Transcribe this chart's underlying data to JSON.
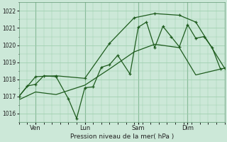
{
  "xlabel": "Pression niveau de la mer( hPa )",
  "bg_color": "#cce8d8",
  "grid_color": "#99ccaa",
  "line_color": "#1e5c1e",
  "ylim": [
    1015.5,
    1022.5
  ],
  "yticks": [
    1016,
    1017,
    1018,
    1019,
    1020,
    1021,
    1022
  ],
  "xlim": [
    0,
    100
  ],
  "day_ticks": [
    8,
    32,
    58,
    82
  ],
  "day_labels": [
    "Ven",
    "Lun",
    "Sam",
    "Dim"
  ],
  "vline_positions": [
    8,
    32,
    58,
    82
  ],
  "line1_x": [
    0,
    4,
    8,
    12,
    18,
    24,
    28,
    32,
    36,
    40,
    44,
    48,
    54,
    58,
    62,
    66,
    70,
    74,
    78,
    82,
    86,
    90,
    94,
    98
  ],
  "line1_y": [
    1017.0,
    1017.6,
    1017.7,
    1018.2,
    1018.15,
    1016.85,
    1015.7,
    1017.5,
    1017.55,
    1018.7,
    1018.85,
    1019.4,
    1018.3,
    1021.05,
    1021.35,
    1019.85,
    1021.1,
    1020.5,
    1019.9,
    1021.2,
    1020.4,
    1020.5,
    1019.85,
    1018.6
  ],
  "line2_x": [
    0,
    8,
    18,
    32,
    44,
    56,
    66,
    78,
    86,
    100
  ],
  "line2_y": [
    1017.0,
    1018.15,
    1018.2,
    1018.05,
    1020.1,
    1021.6,
    1021.85,
    1021.75,
    1021.35,
    1018.65
  ],
  "line3_x": [
    0,
    8,
    18,
    32,
    44,
    56,
    66,
    78,
    86,
    100
  ],
  "line3_y": [
    1016.8,
    1017.25,
    1017.1,
    1017.65,
    1018.6,
    1019.6,
    1020.05,
    1019.85,
    1018.25,
    1018.65
  ]
}
